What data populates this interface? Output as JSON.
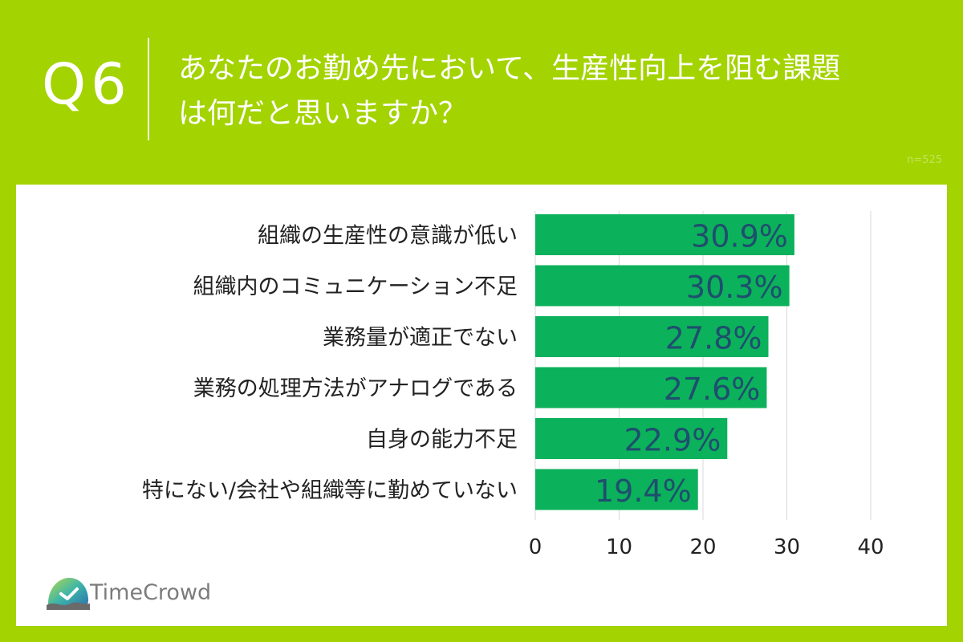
{
  "header": {
    "qnum": "Q6",
    "question_line1": "あなたのお勤め先において、生産性向上を阻む課題",
    "question_line2": "は何だと思いますか？",
    "sample": "n=525"
  },
  "brand": {
    "name": "TimeCrowd"
  },
  "colors": {
    "background": "#a3d300",
    "bar": "#0cb15b",
    "label": "#1f4e6e",
    "text": "#222222"
  },
  "chart_data": {
    "type": "bar",
    "orientation": "horizontal",
    "categories": [
      "組織の生産性の意識が低い",
      "組織内のコミュニケーション不足",
      "業務量が適正でない",
      "業務の処理方法がアナログである",
      "自身の能力不足",
      "特にない/会社や組織等に勤めていない"
    ],
    "values": [
      30.9,
      30.3,
      27.8,
      27.6,
      22.9,
      19.4
    ],
    "value_labels": [
      "30.9%",
      "30.3%",
      "27.8%",
      "27.6%",
      "22.9%",
      "19.4%"
    ],
    "xlim": [
      0,
      40
    ],
    "xticks": [
      "0",
      "10",
      "20",
      "30",
      "40"
    ],
    "grid": true
  }
}
